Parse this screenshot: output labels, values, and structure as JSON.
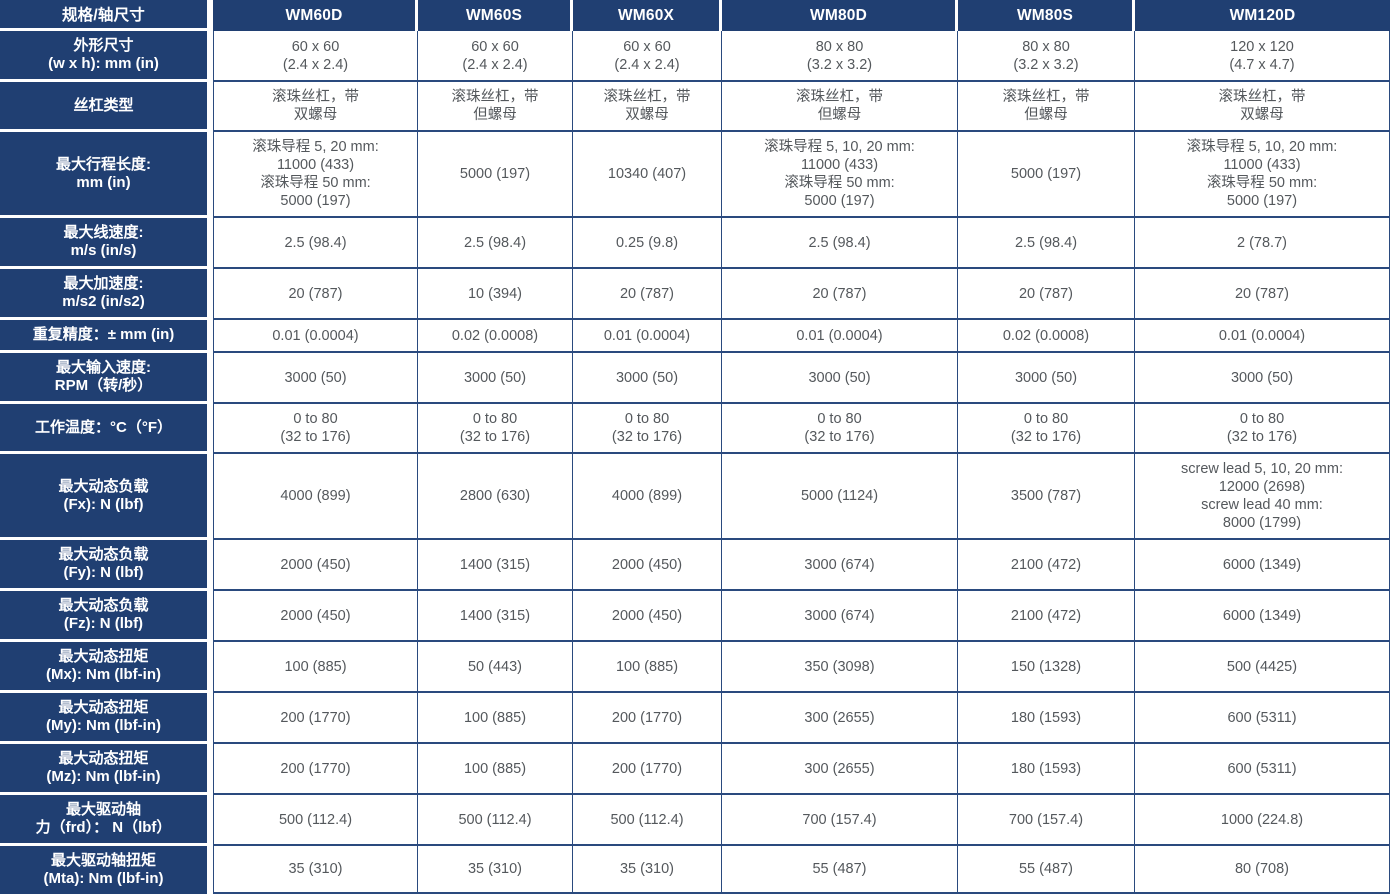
{
  "colors": {
    "navy": "#203f72",
    "grid": "#2a4a7e",
    "cell_text": "#54585c",
    "header_text": "#ffffff",
    "background": "#ffffff"
  },
  "table": {
    "corner_label": "规格/轴尺寸",
    "columns": [
      "WM60D",
      "WM60S",
      "WM60X",
      "WM80D",
      "WM80S",
      "WM120D"
    ],
    "rows": [
      {
        "id": "dimensions",
        "label_lines": [
          "外形尺寸",
          "(w x h): mm (in)"
        ],
        "cells": [
          [
            "60 x 60",
            "(2.4 x 2.4)"
          ],
          [
            "60 x 60",
            "(2.4 x 2.4)"
          ],
          [
            "60 x 60",
            "(2.4 x 2.4)"
          ],
          [
            "80 x 80",
            "(3.2 x 3.2)"
          ],
          [
            "80 x 80",
            "(3.2 x 3.2)"
          ],
          [
            "120 x 120",
            "(4.7 x 4.7)"
          ]
        ]
      },
      {
        "id": "screw-type",
        "label_lines": [
          "丝杠类型"
        ],
        "cells": [
          [
            "滚珠丝杠，带",
            "双螺母"
          ],
          [
            "滚珠丝杠，带",
            "但螺母"
          ],
          [
            "滚珠丝杠，带",
            "双螺母"
          ],
          [
            "滚珠丝杠，带",
            "但螺母"
          ],
          [
            "滚珠丝杠，带",
            "但螺母"
          ],
          [
            "滚珠丝杠，带",
            "双螺母"
          ]
        ]
      },
      {
        "id": "max-stroke-length",
        "label_lines": [
          "最大行程长度:",
          "mm (in)"
        ],
        "cells": [
          [
            "滚珠导程 5, 20 mm:",
            "11000 (433)",
            "滚珠导程 50 mm:",
            "5000 (197)"
          ],
          [
            "5000 (197)"
          ],
          [
            "10340 (407)"
          ],
          [
            "滚珠导程 5, 10, 20 mm:",
            "11000 (433)",
            "滚珠导程 50 mm:",
            "5000 (197)"
          ],
          [
            "5000 (197)"
          ],
          [
            "滚珠导程 5, 10, 20 mm:",
            "11000 (433)",
            "滚珠导程 50 mm:",
            "5000 (197)"
          ]
        ]
      },
      {
        "id": "max-linear-speed",
        "label_lines": [
          "最大线速度:",
          "m/s (in/s)"
        ],
        "cells": [
          [
            "2.5 (98.4)"
          ],
          [
            "2.5 (98.4)"
          ],
          [
            "0.25 (9.8)"
          ],
          [
            "2.5 (98.4)"
          ],
          [
            "2.5 (98.4)"
          ],
          [
            "2 (78.7)"
          ]
        ]
      },
      {
        "id": "max-acceleration",
        "label_lines": [
          "最大加速度:",
          "m/s2 (in/s2)"
        ],
        "cells": [
          [
            "20 (787)"
          ],
          [
            "10 (394)"
          ],
          [
            "20 (787)"
          ],
          [
            "20 (787)"
          ],
          [
            "20 (787)"
          ],
          [
            "20 (787)"
          ]
        ]
      },
      {
        "id": "repeatability",
        "label_lines": [
          "重复精度：± mm (in)"
        ],
        "cells": [
          [
            "0.01 (0.0004)"
          ],
          [
            "0.02 (0.0008)"
          ],
          [
            "0.01 (0.0004)"
          ],
          [
            "0.01 (0.0004)"
          ],
          [
            "0.02 (0.0008)"
          ],
          [
            "0.01 (0.0004)"
          ]
        ]
      },
      {
        "id": "max-input-speed",
        "label_lines": [
          "最大输入速度:",
          "RPM（转/秒）"
        ],
        "cells": [
          [
            "3000 (50)"
          ],
          [
            "3000 (50)"
          ],
          [
            "3000 (50)"
          ],
          [
            "3000 (50)"
          ],
          [
            "3000 (50)"
          ],
          [
            "3000 (50)"
          ]
        ]
      },
      {
        "id": "operating-temperature",
        "label_lines": [
          "工作温度：°C（°F）"
        ],
        "cells": [
          [
            "0 to 80",
            "(32 to 176)"
          ],
          [
            "0 to 80",
            "(32 to 176)"
          ],
          [
            "0 to 80",
            "(32 to 176)"
          ],
          [
            "0 to 80",
            "(32 to 176)"
          ],
          [
            "0 to 80",
            "(32 to 176)"
          ],
          [
            "0 to 80",
            "(32 to 176)"
          ]
        ]
      },
      {
        "id": "max-dynamic-load-fx",
        "label_lines": [
          "最大动态负载",
          "(Fx): N (lbf)"
        ],
        "cells": [
          [
            "4000 (899)"
          ],
          [
            "2800 (630)"
          ],
          [
            "4000 (899)"
          ],
          [
            "5000 (1124)"
          ],
          [
            "3500 (787)"
          ],
          [
            "screw lead 5, 10, 20 mm:",
            "12000 (2698)",
            "screw lead 40 mm:",
            "8000 (1799)"
          ]
        ]
      },
      {
        "id": "max-dynamic-load-fy",
        "label_lines": [
          "最大动态负载",
          "(Fy): N (lbf)"
        ],
        "cells": [
          [
            "2000 (450)"
          ],
          [
            "1400 (315)"
          ],
          [
            "2000 (450)"
          ],
          [
            "3000 (674)"
          ],
          [
            "2100 (472)"
          ],
          [
            "6000 (1349)"
          ]
        ]
      },
      {
        "id": "max-dynamic-load-fz",
        "label_lines": [
          "最大动态负载",
          "(Fz): N (lbf)"
        ],
        "cells": [
          [
            "2000 (450)"
          ],
          [
            "1400 (315)"
          ],
          [
            "2000 (450)"
          ],
          [
            "3000 (674)"
          ],
          [
            "2100 (472)"
          ],
          [
            "6000 (1349)"
          ]
        ]
      },
      {
        "id": "max-dynamic-torque-mx",
        "label_lines": [
          "最大动态扭矩",
          "(Mx): Nm (lbf-in)"
        ],
        "cells": [
          [
            "100 (885)"
          ],
          [
            "50 (443)"
          ],
          [
            "100 (885)"
          ],
          [
            "350 (3098)"
          ],
          [
            "150 (1328)"
          ],
          [
            "500 (4425)"
          ]
        ]
      },
      {
        "id": "max-dynamic-torque-my",
        "label_lines": [
          "最大动态扭矩",
          "(My): Nm (lbf-in)"
        ],
        "cells": [
          [
            "200 (1770)"
          ],
          [
            "100 (885)"
          ],
          [
            "200 (1770)"
          ],
          [
            "300 (2655)"
          ],
          [
            "180 (1593)"
          ],
          [
            "600 (5311)"
          ]
        ]
      },
      {
        "id": "max-dynamic-torque-mz",
        "label_lines": [
          "最大动态扭矩",
          "(Mz): Nm (lbf-in)"
        ],
        "cells": [
          [
            "200 (1770)"
          ],
          [
            "100 (885)"
          ],
          [
            "200 (1770)"
          ],
          [
            "300 (2655)"
          ],
          [
            "180 (1593)"
          ],
          [
            "600 (5311)"
          ]
        ]
      },
      {
        "id": "max-drive-shaft-force",
        "label_lines": [
          "最大驱动轴",
          "力（frd）： N（lbf）"
        ],
        "cells": [
          [
            "500 (112.4)"
          ],
          [
            "500 (112.4)"
          ],
          [
            "500 (112.4)"
          ],
          [
            "700 (157.4)"
          ],
          [
            "700 (157.4)"
          ],
          [
            "1000 (224.8)"
          ]
        ]
      },
      {
        "id": "max-drive-shaft-torque",
        "label_lines": [
          "最大驱动轴扭矩",
          "(Mta): Nm (lbf-in)"
        ],
        "cells": [
          [
            "35 (310)"
          ],
          [
            "35 (310)"
          ],
          [
            "35 (310)"
          ],
          [
            "55 (487)"
          ],
          [
            "55 (487)"
          ],
          [
            "80 (708)"
          ]
        ]
      }
    ]
  }
}
